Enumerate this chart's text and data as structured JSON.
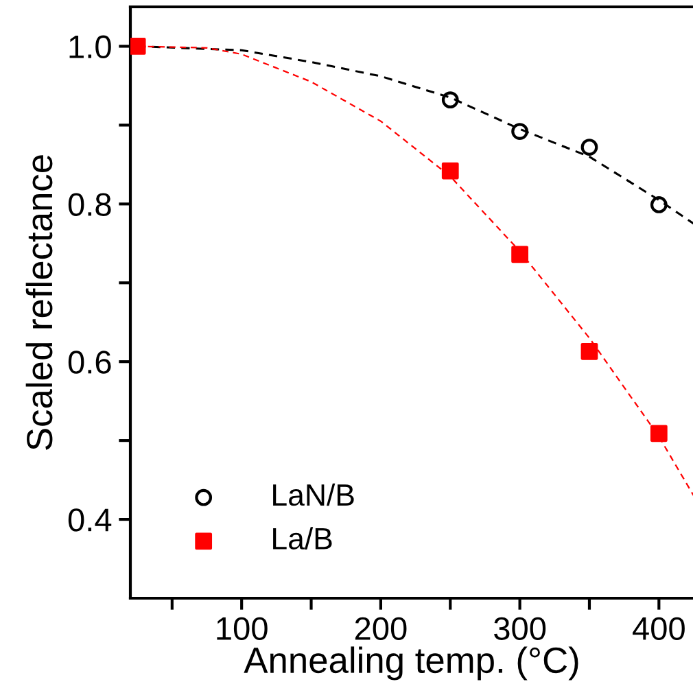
{
  "chart_data": {
    "type": "scatter",
    "xlabel": "Annealing temp. (°C)",
    "ylabel": "Scaled reflectance",
    "xlim": [
      20,
      425
    ],
    "ylim": [
      0.3,
      1.05
    ],
    "xticks": [
      {
        "value": 50,
        "label": null
      },
      100,
      {
        "value": 150,
        "label": null
      },
      200,
      {
        "value": 250,
        "label": null
      },
      300,
      {
        "value": 350,
        "label": null
      },
      400
    ],
    "yticks": [
      0.4,
      {
        "value": 0.5,
        "label": null
      },
      0.6,
      {
        "value": 0.7,
        "label": null
      },
      0.8,
      {
        "value": 0.9,
        "label": null
      },
      {
        "value": 1.0,
        "label": "1.0"
      }
    ],
    "grid": false,
    "legend": "bottom left",
    "series": [
      {
        "name": "LaN/B",
        "color": "#000000",
        "marker": "circle",
        "x": [
          250,
          300,
          350,
          400
        ],
        "values": [
          0.932,
          0.892,
          0.872,
          0.799
        ]
      },
      {
        "name": "La/B",
        "color": "#ff0000",
        "marker": "square",
        "x": [
          25,
          250,
          300,
          350,
          400
        ],
        "values": [
          1.0,
          0.842,
          0.736,
          0.613,
          0.509
        ]
      },
      {
        "type": "line",
        "color": "#000000",
        "line_style": "dashed",
        "x": [
          25,
          100,
          150,
          200,
          250,
          300,
          350,
          400,
          425
        ],
        "values": [
          1.0,
          0.995,
          0.98,
          0.962,
          0.935,
          0.895,
          0.86,
          0.805,
          0.775
        ]
      },
      {
        "type": "line",
        "color": "#ff0000",
        "line_style": "dashed",
        "x": [
          25,
          75,
          100,
          150,
          200,
          250,
          300,
          350,
          400,
          425
        ],
        "values": [
          1.0,
          0.998,
          0.99,
          0.955,
          0.905,
          0.835,
          0.74,
          0.63,
          0.505,
          0.43
        ]
      }
    ]
  }
}
